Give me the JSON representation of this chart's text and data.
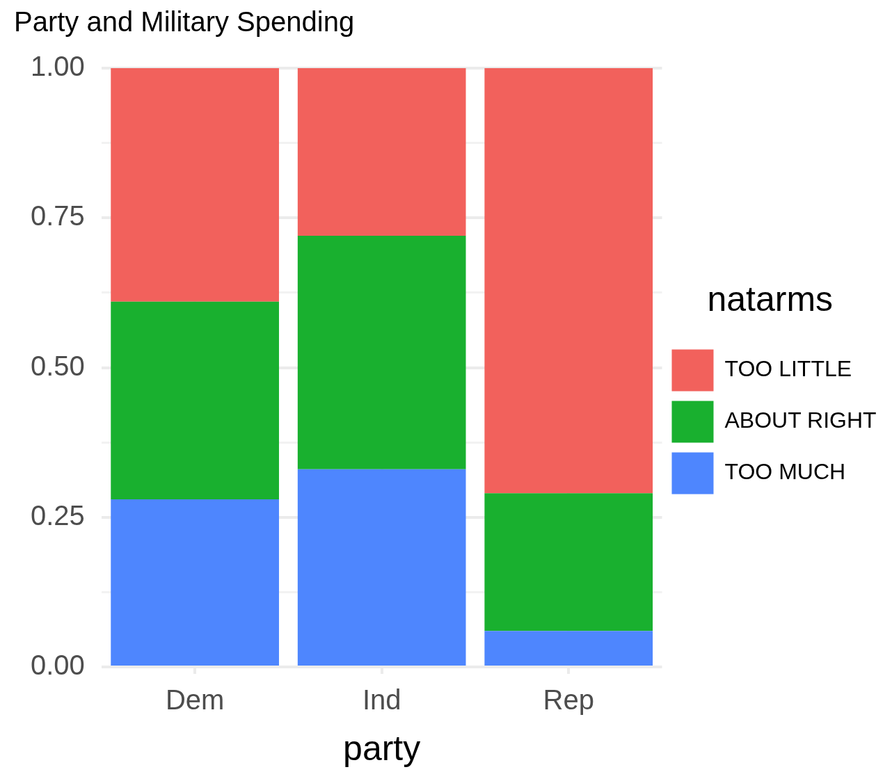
{
  "chart_data": {
    "type": "bar",
    "title": "Party and Military Spending",
    "xlabel": "party",
    "legend_title": "natarms",
    "stacked": true,
    "categories": [
      "Dem",
      "Ind",
      "Rep"
    ],
    "series": [
      {
        "name": "TOO MUCH",
        "color": "#4e86fe",
        "values": [
          0.28,
          0.33,
          0.06
        ]
      },
      {
        "name": "ABOUT RIGHT",
        "color": "#19b02f",
        "values": [
          0.33,
          0.39,
          0.23
        ]
      },
      {
        "name": "TOO LITTLE",
        "color": "#f2615c",
        "values": [
          0.39,
          0.28,
          0.71
        ]
      }
    ],
    "ylim": [
      0,
      1
    ],
    "yticks": [
      {
        "value": 0,
        "label": "0.00"
      },
      {
        "value": 0.125,
        "label": null
      },
      {
        "value": 0.25,
        "label": "0.25"
      },
      {
        "value": 0.375,
        "label": null
      },
      {
        "value": 0.5,
        "label": "0.50"
      },
      {
        "value": 0.625,
        "label": null
      },
      {
        "value": 0.75,
        "label": "0.75"
      },
      {
        "value": 0.875,
        "label": null
      },
      {
        "value": 1,
        "label": "1.00"
      }
    ],
    "grid": true,
    "legend": "right"
  }
}
